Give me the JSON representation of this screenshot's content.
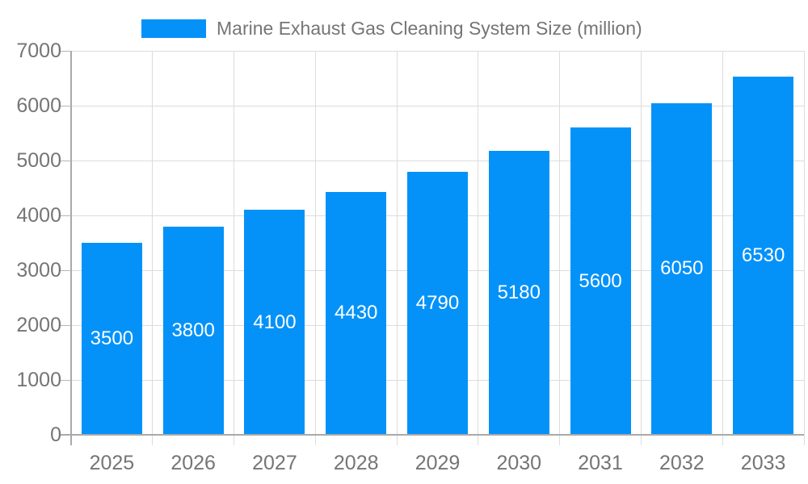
{
  "chart_data": {
    "type": "bar",
    "title": "Marine Exhaust Gas Cleaning System Size (million)",
    "categories": [
      "2025",
      "2026",
      "2027",
      "2028",
      "2029",
      "2030",
      "2031",
      "2032",
      "2033"
    ],
    "values": [
      3500,
      3800,
      4100,
      4430,
      4790,
      5180,
      5600,
      6050,
      6530
    ],
    "bar_value_labels": [
      "3500",
      "3800",
      "4100",
      "4430",
      "4790",
      "5180",
      "5600",
      "6050",
      "6530"
    ],
    "xlabel": "",
    "ylabel": "",
    "ylim": [
      0,
      7000
    ],
    "ytick_step": 1000,
    "ytick_labels": [
      "0",
      "1000",
      "2000",
      "3000",
      "4000",
      "5000",
      "6000",
      "7000"
    ],
    "grid": true,
    "legend_position": "top-center",
    "colors": {
      "bar": "#0492F9",
      "grid_line": "#dcdcdc",
      "axis_line": "#a9a9a9",
      "tick_mark": "#b5b5b5",
      "tick_text": "#757575",
      "value_text": "#ffffff",
      "background": "#ffffff"
    }
  }
}
